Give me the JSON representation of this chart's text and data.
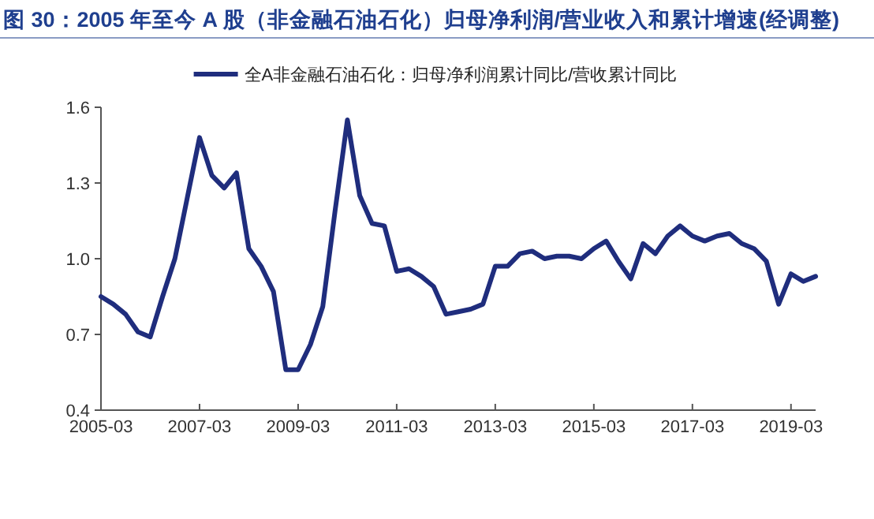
{
  "chart_data": {
    "type": "line",
    "title": "图 30：2005 年至今 A 股（非金融石油石化）归母净利润/营业收入和累计增速(经调整)",
    "x": [
      "2005-03",
      "2005-06",
      "2005-09",
      "2005-12",
      "2006-03",
      "2006-06",
      "2006-09",
      "2006-12",
      "2007-03",
      "2007-06",
      "2007-09",
      "2007-12",
      "2008-03",
      "2008-06",
      "2008-09",
      "2008-12",
      "2009-03",
      "2009-06",
      "2009-09",
      "2009-12",
      "2010-03",
      "2010-06",
      "2010-09",
      "2010-12",
      "2011-03",
      "2011-06",
      "2011-09",
      "2011-12",
      "2012-03",
      "2012-06",
      "2012-09",
      "2012-12",
      "2013-03",
      "2013-06",
      "2013-09",
      "2013-12",
      "2014-03",
      "2014-06",
      "2014-09",
      "2014-12",
      "2015-03",
      "2015-06",
      "2015-09",
      "2015-12",
      "2016-03",
      "2016-06",
      "2016-09",
      "2016-12",
      "2017-03",
      "2017-06",
      "2017-09",
      "2017-12",
      "2018-03",
      "2018-06",
      "2018-09",
      "2018-12",
      "2019-03",
      "2019-06",
      "2019-09"
    ],
    "series": [
      {
        "name": "全A非金融石油石化：归母净利润累计同比/营收累计同比",
        "color": "#1f2d7d",
        "values": [
          0.85,
          0.82,
          0.78,
          0.71,
          0.69,
          0.85,
          1.0,
          1.24,
          1.48,
          1.33,
          1.28,
          1.34,
          1.04,
          0.97,
          0.87,
          0.56,
          0.56,
          0.66,
          0.81,
          1.19,
          1.55,
          1.25,
          1.14,
          1.13,
          0.95,
          0.96,
          0.93,
          0.89,
          0.78,
          0.79,
          0.8,
          0.82,
          0.97,
          0.97,
          1.02,
          1.03,
          1.0,
          1.01,
          1.01,
          1.0,
          1.04,
          1.07,
          0.99,
          0.92,
          1.06,
          1.02,
          1.09,
          1.13,
          1.09,
          1.07,
          1.09,
          1.1,
          1.06,
          1.04,
          0.99,
          0.82,
          0.94,
          0.91,
          0.93
        ]
      }
    ],
    "xlim": [
      "2005-03",
      "2019-09"
    ],
    "xticks": [
      "2005-03",
      "2007-03",
      "2009-03",
      "2011-03",
      "2013-03",
      "2015-03",
      "2017-03",
      "2019-03"
    ],
    "ylim": [
      0.4,
      1.6
    ],
    "yticks": [
      0.4,
      0.7,
      {
        "value": 1,
        "label": "1.0"
      },
      1.3,
      1.6
    ],
    "legend": "top",
    "grid": false,
    "marker": "none",
    "line_style": "solid"
  }
}
